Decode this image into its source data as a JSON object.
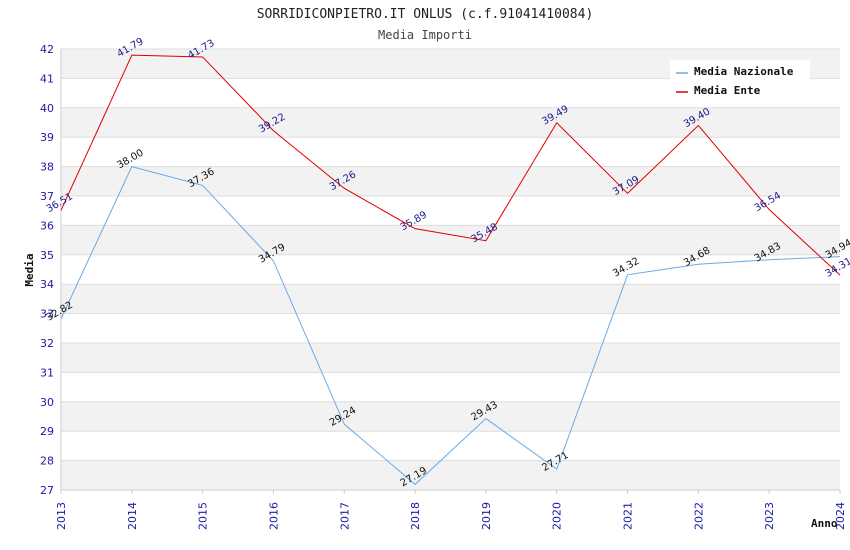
{
  "chart_data": {
    "type": "line",
    "title": "SORRIDICONPIETRO.IT ONLUS (c.f.91041410084)",
    "subtitle": "Media Importi",
    "xlabel": "Anno",
    "ylabel": "Media",
    "ylim": [
      27,
      42
    ],
    "yticks": [
      "27",
      "28",
      "29",
      "30",
      "31",
      "32",
      "33",
      "34",
      "35",
      "36",
      "37",
      "38",
      "39",
      "40",
      "41",
      "42"
    ],
    "categories": [
      "2013",
      "2014",
      "2015",
      "2016",
      "2017",
      "2018",
      "2019",
      "2020",
      "2021",
      "2022",
      "2023",
      "2024"
    ],
    "grid": true,
    "legend_position": "top-right",
    "series": [
      {
        "name": "Media Nazionale",
        "color": "#6aaae6",
        "label_color": "#111111",
        "values": [
          32.82,
          38.0,
          37.36,
          34.79,
          29.24,
          27.19,
          29.43,
          27.71,
          34.32,
          34.68,
          34.83,
          34.94
        ],
        "labels": [
          "32.82",
          "38.00",
          "37.36",
          "34.79",
          "29.24",
          "27.19",
          "29.43",
          "27.71",
          "34.32",
          "34.68",
          "34.83",
          "34.94"
        ]
      },
      {
        "name": "Media Ente",
        "color": "#dd0000",
        "label_color": "#1a1a8c",
        "values": [
          36.51,
          41.79,
          41.73,
          39.22,
          37.26,
          35.89,
          35.48,
          39.49,
          37.09,
          39.4,
          36.54,
          34.31
        ],
        "labels": [
          "36.51",
          "41.79",
          "41.73",
          "39.22",
          "37.26",
          "35.89",
          "35.48",
          "39.49",
          "37.09",
          "39.40",
          "36.54",
          "34.31"
        ]
      }
    ]
  }
}
